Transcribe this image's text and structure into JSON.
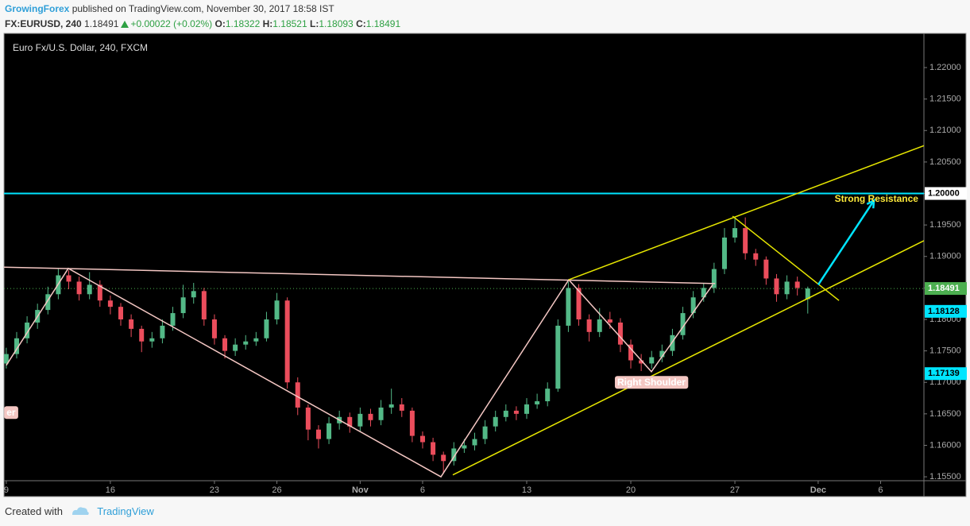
{
  "header": {
    "author": "GrowingForex",
    "published": "published on TradingView.com, November 30, 2017 18:58 IST",
    "symbol": "FX:EURUSD, 240",
    "last": "1.18491",
    "change": "+0.00022 (+0.02%)",
    "ohlc": [
      {
        "label": "O:",
        "value": "1.18322"
      },
      {
        "label": "H:",
        "value": "1.18521"
      },
      {
        "label": "L:",
        "value": "1.18093"
      },
      {
        "label": "C:",
        "value": "1.18491"
      }
    ]
  },
  "footer": {
    "created": "Created with",
    "brand": "TradingView"
  },
  "chart_data": {
    "type": "candlestick",
    "title": "Euro Fx/U.S. Dollar, 240, FXCM",
    "x": [
      0,
      0.5,
      1,
      1.5,
      2,
      2.5,
      3,
      3.5,
      4,
      4.5,
      5,
      5.5,
      6,
      6.5,
      7,
      7.5,
      8,
      8.5,
      9,
      9.5,
      10,
      10.5,
      11,
      11.5,
      12,
      12.5,
      13,
      13.5,
      14,
      14.5,
      15,
      15.5,
      16,
      16.5,
      17,
      17.5,
      18,
      18.5,
      19,
      19.5,
      20,
      20.5,
      21,
      21.5,
      22,
      22.5,
      23,
      23.5,
      24,
      24.5,
      25,
      25.5,
      26,
      26.5,
      27,
      27.5,
      28,
      28.5,
      29,
      29.5,
      30,
      30.5,
      31,
      31.5,
      32,
      32.5,
      33,
      33.5,
      34,
      34.5,
      35,
      35.5,
      36,
      36.5,
      37,
      37.5,
      38,
      38.5
    ],
    "open": [
      1.173,
      1.1745,
      1.177,
      1.1795,
      1.1815,
      1.184,
      1.187,
      1.186,
      1.184,
      1.1855,
      1.183,
      1.182,
      1.18,
      1.1785,
      1.1765,
      1.177,
      1.179,
      1.181,
      1.1835,
      1.1845,
      1.18,
      1.177,
      1.175,
      1.176,
      1.1765,
      1.177,
      1.18,
      1.183,
      1.17,
      1.166,
      1.1625,
      1.161,
      1.1635,
      1.1645,
      1.163,
      1.165,
      1.164,
      1.166,
      1.1665,
      1.1655,
      1.1615,
      1.1605,
      1.1585,
      1.1575,
      1.1595,
      1.16,
      1.161,
      1.163,
      1.1645,
      1.1655,
      1.165,
      1.1665,
      1.167,
      1.169,
      1.179,
      1.185,
      1.18,
      1.178,
      1.18,
      1.1795,
      1.176,
      1.1735,
      1.173,
      1.174,
      1.175,
      1.1775,
      1.181,
      1.1835,
      1.185,
      1.188,
      1.193,
      1.1945,
      1.1905,
      1.1895,
      1.1865,
      1.184,
      1.186,
      1.18322
    ],
    "high": [
      1.1755,
      1.178,
      1.1805,
      1.1825,
      1.1852,
      1.188,
      1.1878,
      1.1868,
      1.1875,
      1.1862,
      1.1838,
      1.1826,
      1.1808,
      1.179,
      1.178,
      1.18,
      1.182,
      1.1855,
      1.1858,
      1.185,
      1.1808,
      1.1775,
      1.177,
      1.1775,
      1.178,
      1.1812,
      1.1842,
      1.1835,
      1.1708,
      1.1665,
      1.1632,
      1.1645,
      1.1655,
      1.1652,
      1.166,
      1.1658,
      1.1672,
      1.169,
      1.1675,
      1.166,
      1.1622,
      1.1612,
      1.159,
      1.1605,
      1.161,
      1.162,
      1.164,
      1.1655,
      1.1665,
      1.1662,
      1.1675,
      1.1682,
      1.17,
      1.18,
      1.186,
      1.1856,
      1.1808,
      1.1818,
      1.1812,
      1.1802,
      1.1768,
      1.1745,
      1.175,
      1.176,
      1.1785,
      1.182,
      1.1845,
      1.1858,
      1.189,
      1.1945,
      1.196,
      1.1962,
      1.1912,
      1.19,
      1.1872,
      1.187,
      1.1868,
      1.18521
    ],
    "low": [
      1.1722,
      1.1738,
      1.1762,
      1.1785,
      1.1808,
      1.1832,
      1.1848,
      1.183,
      1.1832,
      1.182,
      1.1808,
      1.179,
      1.1772,
      1.1748,
      1.1755,
      1.1762,
      1.1782,
      1.1802,
      1.1825,
      1.179,
      1.176,
      1.1738,
      1.1742,
      1.1752,
      1.1758,
      1.1765,
      1.1792,
      1.169,
      1.1648,
      1.1608,
      1.1595,
      1.1602,
      1.1625,
      1.162,
      1.1622,
      1.163,
      1.1632,
      1.165,
      1.1645,
      1.1605,
      1.1595,
      1.1575,
      1.1555,
      1.1568,
      1.1588,
      1.1592,
      1.1602,
      1.1622,
      1.1638,
      1.164,
      1.1642,
      1.1658,
      1.1662,
      1.1685,
      1.178,
      1.179,
      1.1765,
      1.1772,
      1.1785,
      1.1748,
      1.1722,
      1.1718,
      1.1722,
      1.1732,
      1.1742,
      1.1768,
      1.1802,
      1.1828,
      1.1842,
      1.1872,
      1.1922,
      1.1895,
      1.1885,
      1.1855,
      1.1828,
      1.1832,
      1.1838,
      1.18093
    ],
    "close": [
      1.1745,
      1.177,
      1.1795,
      1.1815,
      1.184,
      1.187,
      1.186,
      1.184,
      1.1855,
      1.183,
      1.182,
      1.18,
      1.1785,
      1.1765,
      1.177,
      1.179,
      1.181,
      1.1835,
      1.1845,
      1.18,
      1.177,
      1.175,
      1.176,
      1.1765,
      1.177,
      1.18,
      1.183,
      1.17,
      1.166,
      1.1625,
      1.161,
      1.1635,
      1.1645,
      1.163,
      1.165,
      1.164,
      1.166,
      1.1665,
      1.1655,
      1.1615,
      1.1605,
      1.1585,
      1.1575,
      1.1595,
      1.16,
      1.161,
      1.163,
      1.1645,
      1.1655,
      1.165,
      1.1665,
      1.167,
      1.169,
      1.179,
      1.185,
      1.18,
      1.178,
      1.18,
      1.1795,
      1.176,
      1.1735,
      1.173,
      1.174,
      1.175,
      1.1775,
      1.181,
      1.1835,
      1.185,
      1.188,
      1.193,
      1.1945,
      1.1905,
      1.1895,
      1.1865,
      1.184,
      1.186,
      1.185,
      1.18491
    ],
    "colors": {
      "up": "#53b987",
      "down": "#eb4d5c"
    },
    "xlim": [
      -0.11,
      44.08
    ],
    "xticks": [
      {
        "value": 0,
        "label": "9"
      },
      {
        "value": 5,
        "label": "16"
      },
      {
        "value": 10,
        "label": "23"
      },
      {
        "value": 13,
        "label": "26"
      },
      {
        "value": 17,
        "label": "Nov"
      },
      {
        "value": 20,
        "label": "6"
      },
      {
        "value": 25,
        "label": "13"
      },
      {
        "value": 30,
        "label": "20"
      },
      {
        "value": 35,
        "label": "27"
      },
      {
        "value": 39,
        "label": "Dec"
      },
      {
        "value": 42,
        "label": "6"
      }
    ],
    "ylim": [
      1.15438,
      1.22543
    ],
    "yticks": [
      {
        "value": 1.155,
        "label": "1.15500"
      },
      {
        "value": 1.16,
        "label": "1.16000"
      },
      {
        "value": 1.165,
        "label": "1.16500"
      },
      {
        "value": 1.17,
        "label": "1.17000"
      },
      {
        "value": 1.175,
        "label": "1.17500"
      },
      {
        "value": 1.18,
        "label": "1.18000"
      },
      {
        "value": 1.185,
        "label": "1.18500"
      },
      {
        "value": 1.19,
        "label": "1.19000"
      },
      {
        "value": 1.195,
        "label": "1.19500"
      },
      {
        "value": 1.2,
        "label": "1.20000"
      },
      {
        "value": 1.205,
        "label": "1.20500"
      },
      {
        "value": 1.21,
        "label": "1.21000"
      },
      {
        "value": 1.215,
        "label": "1.21500"
      },
      {
        "value": 1.22,
        "label": "1.22000"
      }
    ],
    "grid": false,
    "price_lines": [
      {
        "value": 1.2,
        "label": "1.20000",
        "color": "#00e5ff"
      }
    ],
    "last_line": {
      "value": 1.18491,
      "label": "1.18491",
      "color": "#4caf50"
    },
    "price_badges": [
      {
        "value": 1.18128,
        "label": "1.18128",
        "color": "#00e5ff"
      },
      {
        "value": 1.17139,
        "label": "1.17139",
        "color": "#00e5ff"
      }
    ],
    "drawings": [
      {
        "color": "#f4c7c3",
        "x": [
          -0.11,
          34.05
        ],
        "y": [
          1.1883,
          1.1857
        ]
      },
      {
        "color": "#f4c7c3",
        "x": [
          0,
          2.98,
          20.88,
          27.02,
          30.99,
          33.93
        ],
        "y": [
          1.1727,
          1.1881,
          1.155,
          1.1863,
          1.1717,
          1.1855
        ]
      },
      {
        "color": "#e6e600",
        "x": [
          21.45,
          44.08
        ],
        "y": [
          1.1553,
          1.1925
        ]
      },
      {
        "color": "#e6e600",
        "x": [
          27.02,
          44.08
        ],
        "y": [
          1.1863,
          1.2076
        ]
      },
      {
        "color": "#e6e600",
        "x": [
          34.89,
          40.0
        ],
        "y": [
          1.1964,
          1.183
        ]
      },
      {
        "color": "#00e5ff",
        "x": [
          39.0,
          41.68
        ],
        "y": [
          1.1855,
          1.1989
        ],
        "arrow": true
      }
    ],
    "annotations": [
      {
        "text": "Strong Resistance",
        "x": 41.8,
        "y": 1.1991,
        "color": "#ffeb3b"
      },
      {
        "text": "Right Shoulder",
        "x": 30.99,
        "y": 1.1699,
        "color": "#ffffff",
        "background": "#f4c7c3"
      },
      {
        "text": "er",
        "x": 0.23,
        "y": 1.1651,
        "color": "#ffffff",
        "background": "#f4c7c3"
      }
    ]
  }
}
